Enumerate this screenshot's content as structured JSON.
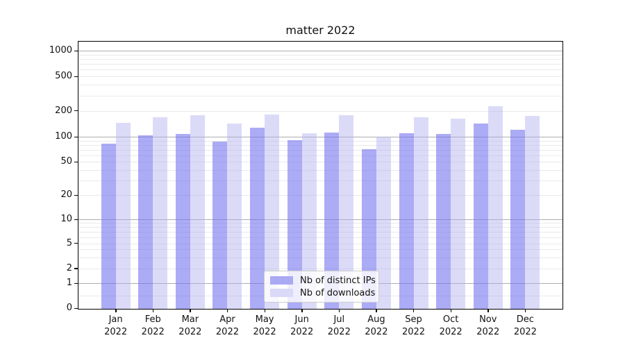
{
  "title": "matter 2022",
  "legend": {
    "items": [
      {
        "label": "Nb of distinct IPs",
        "color": "#a9a9f4"
      },
      {
        "label": "Nb of downloads",
        "color": "#dadaf8"
      }
    ]
  },
  "colors": {
    "bar_distinct_ips": "rgba(115,115,240,0.60)",
    "bar_downloads": "rgba(175,175,240,0.45)",
    "grid_minor": "#e9e9e9",
    "grid_major": "#adadad",
    "axis": "#000000"
  },
  "chart_data": {
    "type": "bar",
    "title": "matter 2022",
    "xlabel": "",
    "ylabel": "",
    "yscale": "log-like (symlog, linear below 1, 0 at baseline)",
    "grid": true,
    "legend_position": "lower center",
    "ylim": [
      0,
      1400
    ],
    "yticks": [
      1000,
      500,
      200,
      100,
      50,
      20,
      10,
      5,
      2,
      1,
      0
    ],
    "categories": [
      "Jan",
      "Feb",
      "Mar",
      "Apr",
      "May",
      "Jun",
      "Jul",
      "Aug",
      "Sep",
      "Oct",
      "Nov",
      "Dec"
    ],
    "x_tick_second_line": "2022",
    "series": [
      {
        "name": "Nb of distinct IPs",
        "values": [
          83,
          104,
          107,
          88,
          128,
          91,
          112,
          71,
          110,
          107,
          141,
          120
        ]
      },
      {
        "name": "Nb of downloads",
        "values": [
          144,
          169,
          176,
          142,
          181,
          110,
          176,
          100,
          169,
          163,
          224,
          174
        ]
      }
    ]
  }
}
